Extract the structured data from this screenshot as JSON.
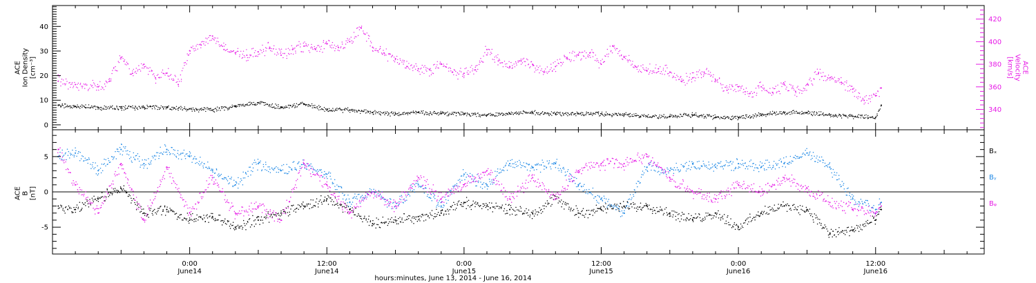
{
  "figure": {
    "x_caption": "hours:minutes, June 13, 2014 - June 16, 2014"
  },
  "colors": {
    "black": "#000000",
    "magenta": "#e619e6",
    "blue": "#1e88e5"
  },
  "chart_data": [
    {
      "type": "scatter",
      "panel": "top",
      "left_axis": {
        "label_lines": [
          "ACE",
          "Ion Density",
          "[cm⁻³]"
        ],
        "range": [
          -2,
          48.5
        ],
        "ticks": [
          0,
          10,
          20,
          30,
          40
        ],
        "tick_labels": [
          "0",
          "10",
          "20",
          "30",
          "40"
        ]
      },
      "right_axis": {
        "label_lines": [
          "ACE",
          "Velocity",
          "[km/s]"
        ],
        "range": [
          322,
          432
        ],
        "ticks": [
          340,
          360,
          380,
          400,
          420
        ],
        "tick_labels": [
          "340",
          "360",
          "380",
          "400",
          "420"
        ],
        "color": "#e619e6"
      },
      "series": [
        {
          "axis": "left",
          "color": "#000000",
          "x": [
            -11.5,
            -10,
            -8,
            -6,
            -4,
            -2,
            0,
            2,
            4,
            6,
            8,
            10,
            12,
            14,
            16,
            18,
            20,
            22,
            24,
            26,
            28,
            30,
            32,
            34,
            36,
            38,
            40,
            42,
            44,
            46,
            48,
            50,
            52,
            54,
            56,
            58,
            60,
            60.5
          ],
          "y": [
            8,
            7.5,
            7,
            6.8,
            7.2,
            7,
            6.5,
            6,
            7.5,
            9,
            7,
            8.5,
            6,
            6,
            5,
            4.5,
            5,
            4.5,
            4.5,
            4,
            4.5,
            5,
            4.5,
            4.5,
            4.5,
            4,
            3.5,
            3.5,
            4,
            3,
            3,
            4,
            5,
            5,
            4,
            3.5,
            3,
            8
          ]
        },
        {
          "axis": "right",
          "color": "#e619e6",
          "x": [
            -11.5,
            -10,
            -8,
            -7,
            -6,
            -5,
            -4,
            -3,
            -2,
            -1,
            0,
            1,
            2,
            3,
            4,
            5,
            6,
            7,
            8,
            9,
            10,
            11,
            12,
            13,
            14,
            15,
            16,
            17,
            18,
            19,
            20,
            21,
            22,
            23,
            24,
            25,
            26,
            27,
            28,
            29,
            30,
            31,
            32,
            33,
            34,
            35,
            36,
            37,
            38,
            39,
            40,
            41,
            42,
            43,
            44,
            45,
            46,
            47,
            48,
            49,
            50,
            51,
            52,
            53,
            54,
            55,
            56,
            57,
            58,
            59,
            60,
            60.5
          ],
          "y": [
            365,
            362,
            360,
            365,
            386,
            372,
            380,
            368,
            372,
            362,
            392,
            397,
            405,
            393,
            390,
            388,
            391,
            395,
            388,
            393,
            396,
            393,
            398,
            395,
            400,
            412,
            395,
            390,
            385,
            378,
            376,
            375,
            380,
            373,
            372,
            375,
            393,
            383,
            378,
            383,
            380,
            373,
            378,
            386,
            388,
            390,
            380,
            396,
            386,
            378,
            374,
            376,
            373,
            365,
            368,
            373,
            366,
            357,
            360,
            354,
            360,
            355,
            362,
            356,
            362,
            372,
            368,
            364,
            358,
            348,
            352,
            359
          ]
        }
      ]
    },
    {
      "type": "scatter",
      "panel": "bottom",
      "left_axis": {
        "label_lines": [
          "ACE",
          "B",
          "[nT]"
        ],
        "range": [
          -8.8,
          8.8
        ],
        "ticks": [
          -5,
          0,
          5
        ],
        "tick_labels": [
          "-5",
          "0",
          "5"
        ]
      },
      "legend": [
        "Bₓ",
        "Bᵧ",
        "Bᵩ"
      ],
      "series": [
        {
          "name": "Bx",
          "color": "#000000",
          "x": [
            -11.5,
            -10,
            -8,
            -6,
            -4,
            -2,
            0,
            2,
            4,
            6,
            8,
            10,
            12,
            14,
            16,
            18,
            20,
            22,
            24,
            26,
            28,
            30,
            32,
            34,
            36,
            38,
            40,
            42,
            44,
            46,
            48,
            50,
            52,
            54,
            56,
            58,
            60,
            60.5
          ],
          "y": [
            -2,
            -2.5,
            -1,
            0.5,
            -3,
            -2.5,
            -4,
            -3.5,
            -5,
            -4,
            -3,
            -2,
            -1,
            -2.5,
            -4.5,
            -4,
            -3.5,
            -3,
            -1.5,
            -2,
            -2.5,
            -3,
            -1,
            -3,
            -2.5,
            -2,
            -2,
            -3,
            -4,
            -3,
            -5,
            -3,
            -2,
            -2.5,
            -6,
            -5.5,
            -4,
            -2.5
          ]
        },
        {
          "name": "By",
          "color": "#1e88e5",
          "x": [
            -11.5,
            -10,
            -8,
            -6,
            -4,
            -2,
            0,
            2,
            4,
            6,
            8,
            10,
            12,
            14,
            16,
            18,
            20,
            22,
            24,
            26,
            28,
            30,
            32,
            34,
            36,
            38,
            40,
            42,
            44,
            46,
            48,
            50,
            52,
            54,
            56,
            58,
            60,
            60.5
          ],
          "y": [
            5,
            5.5,
            3,
            6,
            4,
            6,
            5,
            3,
            1,
            4,
            3,
            4,
            2.5,
            -1.5,
            0,
            -2,
            1,
            -2,
            2.5,
            1,
            4,
            3.5,
            4,
            1,
            -1,
            -3,
            3.5,
            3,
            4,
            3.5,
            4,
            3.5,
            4,
            5.5,
            3.5,
            -1,
            -2.5,
            -1.5
          ]
        },
        {
          "name": "Bz",
          "color": "#e619e6",
          "x": [
            -11.5,
            -10,
            -8,
            -6,
            -4,
            -2,
            0,
            2,
            4,
            6,
            8,
            10,
            12,
            14,
            16,
            18,
            20,
            22,
            24,
            26,
            28,
            30,
            32,
            34,
            36,
            38,
            40,
            42,
            44,
            46,
            48,
            50,
            52,
            54,
            56,
            58,
            60,
            60.5
          ],
          "y": [
            6,
            1,
            -3,
            4,
            -4,
            3.5,
            -3,
            2,
            -3,
            -2,
            -4,
            4,
            1,
            -3,
            0,
            -2,
            2,
            -1,
            1,
            3,
            -1,
            2,
            -1,
            3,
            4,
            4,
            5,
            2,
            0,
            -1,
            1,
            0,
            2,
            0.5,
            -1.5,
            -2.5,
            -3,
            -2
          ]
        }
      ]
    }
  ],
  "x_axis": {
    "range": [
      -12,
      69.5
    ],
    "major_ticks": [
      0,
      12,
      24,
      36,
      48,
      60
    ],
    "tick_labels": [
      {
        "time": "0:00",
        "date": "June14"
      },
      {
        "time": "12:00",
        "date": "June14"
      },
      {
        "time": "0:00",
        "date": "June15"
      },
      {
        "time": "12:00",
        "date": "June15"
      },
      {
        "time": "0:00",
        "date": "June16"
      },
      {
        "time": "12:00",
        "date": "June16"
      }
    ]
  }
}
